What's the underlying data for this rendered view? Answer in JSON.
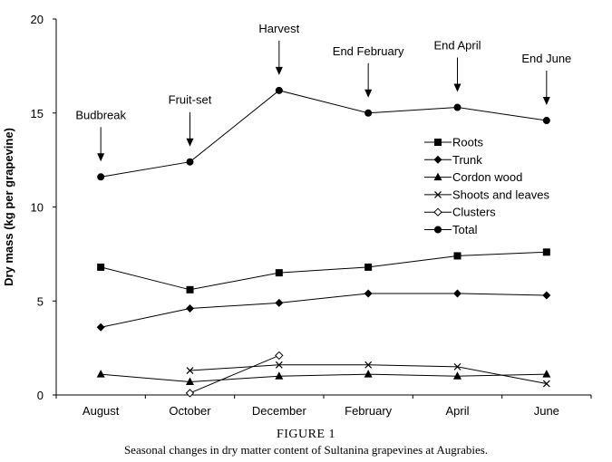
{
  "figure": {
    "number": "FIGURE 1",
    "caption": "Seasonal changes in dry matter content of Sultanina grapevines at Augrabies."
  },
  "chart_data": {
    "type": "line",
    "title": "",
    "xlabel": "",
    "ylabel": "Dry mass (kg per grapevine)",
    "categories": [
      "August",
      "October",
      "December",
      "February",
      "April",
      "June"
    ],
    "ylim": [
      0,
      20
    ],
    "yticks": [
      0,
      5,
      10,
      15,
      20
    ],
    "grid": false,
    "legend_position": "right-center",
    "series": [
      {
        "name": "Roots",
        "marker": "square",
        "values": [
          6.8,
          5.6,
          6.5,
          6.8,
          7.4,
          7.6
        ]
      },
      {
        "name": "Trunk",
        "marker": "diamond",
        "values": [
          3.6,
          4.6,
          4.9,
          5.4,
          5.4,
          5.3
        ]
      },
      {
        "name": "Cordon wood",
        "marker": "triangle",
        "values": [
          1.1,
          0.7,
          1.0,
          1.1,
          1.0,
          1.1
        ]
      },
      {
        "name": "Shoots and leaves",
        "marker": "x",
        "values": [
          null,
          1.3,
          1.6,
          1.6,
          1.5,
          0.6
        ]
      },
      {
        "name": "Clusters",
        "marker": "diamond-open",
        "values": [
          null,
          0.1,
          2.1,
          null,
          null,
          null
        ]
      },
      {
        "name": "Total",
        "marker": "circle",
        "values": [
          11.6,
          12.4,
          16.2,
          15.0,
          15.3,
          14.6
        ]
      }
    ],
    "annotations": [
      {
        "text": "Budbreak",
        "category": "August",
        "value": 11.6
      },
      {
        "text": "Fruit-set",
        "category": "October",
        "value": 12.4
      },
      {
        "text": "Harvest",
        "category": "December",
        "value": 16.2
      },
      {
        "text": "End February",
        "category": "February",
        "value": 15.0
      },
      {
        "text": "End April",
        "category": "April",
        "value": 15.3
      },
      {
        "text": "End June",
        "category": "June",
        "value": 14.6
      }
    ]
  }
}
